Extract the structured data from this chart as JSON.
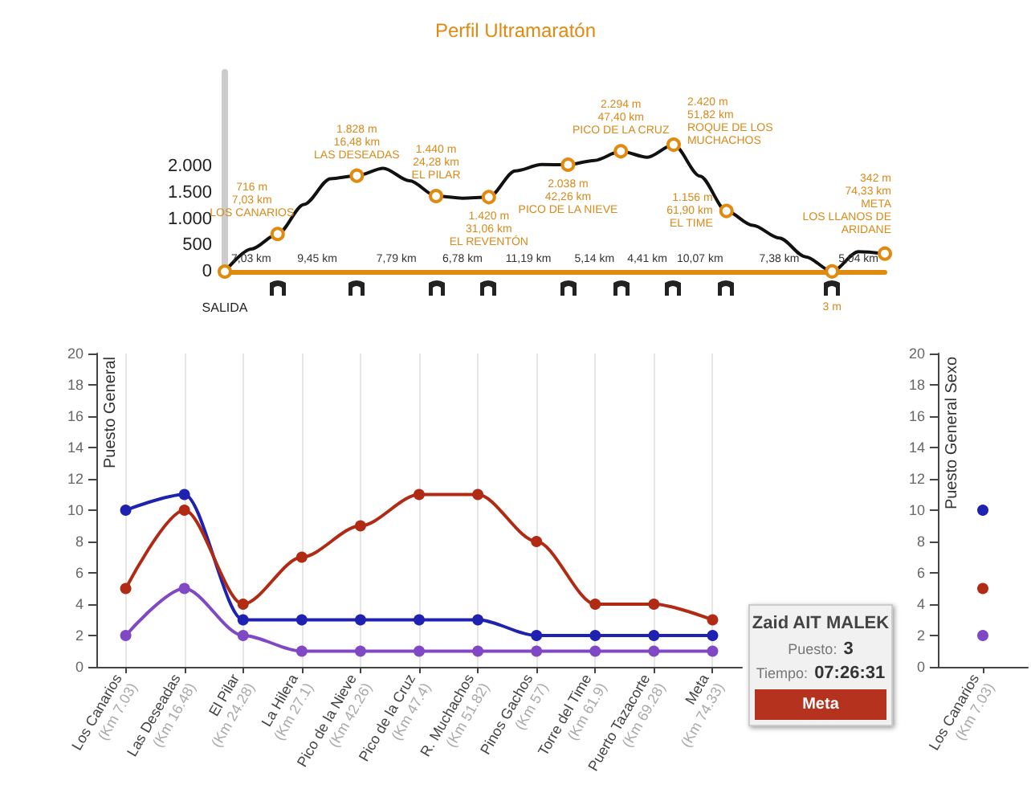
{
  "chart_data": [
    {
      "type": "line",
      "title": "Perfil Ultramaratón",
      "tick_labels": "y",
      "grid": false,
      "marker": "none",
      "categories": [
        null,
        null,
        null,
        null,
        null,
        null,
        null,
        null,
        null,
        null,
        null,
        null,
        null,
        null,
        null,
        null,
        null,
        null,
        null,
        null,
        null,
        null,
        null,
        null,
        null,
        null
      ],
      "series": [
        {
          "color": "#111111",
          "values": [
            0,
            430,
            716,
            1280,
            1770,
            1828,
            1970,
            1730,
            1440,
            1400,
            1420,
            1920,
            2040,
            2038,
            2120,
            2294,
            2180,
            2420,
            1820,
            1156,
            880,
            640,
            280,
            3,
            380,
            342
          ],
          "value_labels": [
            "SALIDA",
            null,
            "716 m\n7,03 km\nLOS CANARIOS",
            null,
            null,
            "1.828 m\n16,48 km\nLAS DESEADAS",
            null,
            null,
            "1.440 m\n24,28 km\nEL PILAR",
            null,
            "1.420 m\n31,06 km\nEL REVENTÓN",
            null,
            null,
            "2.038 m\n42,26 km\nPICO DE LA NIEVE",
            null,
            "2.294 m\n47,40 km\nPICO DE LA CRUZ",
            null,
            "2.420 m\n51,82 km\nROQUE DE LOS\nMUCHACHOS",
            null,
            "1.156 m\n61,90 km\nEL TIME",
            null,
            null,
            null,
            "3 m",
            null,
            "342 m\n74,33 km\nMETA\nLOS LLANOS DE\nARIDANE"
          ]
        }
      ],
      "ylim": [
        0,
        3800
      ],
      "yticks": [
        0,
        500,
        {
          "value": 1000,
          "label": "1.000"
        },
        {
          "value": 1500,
          "label": "1.500"
        },
        {
          "value": 2000,
          "label": "2.000"
        }
      ],
      "annotations": [
        "7,03 km",
        "9,45 km",
        "7,79 km",
        "6,78 km",
        "11,19 km",
        "5,14 km",
        "4,41 km",
        "10,07 km",
        "7,38 km",
        "5,04 km"
      ]
    },
    {
      "type": "line",
      "ylabel": "Puesto General",
      "grid": "x",
      "marker": "circle",
      "categories": [
        "Los Canarios\n(Km 7.03)",
        "Las Deseadas\n(Km 16.48)",
        "El Pilar\n(Km 24.28)",
        "La Hilera\n(Km 27.1)",
        "Pico de la Nieve\n(Km 42.26)",
        "Pico de la Cruz\n(Km 47.4)",
        "R. Muchachos\n(Km 51.82)",
        "Pinos Gachos\n(Km 57)",
        "Torre del Time\n(Km 61.9)",
        "Puerto Tazacorte\n(Km 69.28)",
        "Meta\n(Km 74.33)"
      ],
      "series": [
        {
          "color": "#1f22b0",
          "values": [
            10,
            11,
            3,
            3,
            3,
            3,
            3,
            2,
            2,
            2,
            2
          ]
        },
        {
          "color": "#b02a14",
          "values": [
            5,
            10,
            4,
            7,
            9,
            11,
            11,
            8,
            4,
            4,
            3
          ]
        },
        {
          "color": "#8048c4",
          "values": [
            2,
            5,
            2,
            1,
            1,
            1,
            1,
            1,
            1,
            1,
            1
          ]
        }
      ],
      "ylim": [
        0,
        20
      ],
      "yticks": [
        0,
        2,
        4,
        6,
        8,
        10,
        12,
        14,
        16,
        18,
        20
      ],
      "annotations": [
        "Zaid AIT MALEK",
        "Puesto:",
        "3",
        "Tiempo:",
        "07:26:31",
        "Meta"
      ]
    },
    {
      "type": "line",
      "ylabel": "Puesto General Sexo",
      "grid": false,
      "marker": "circle",
      "categories": [
        "Los Canarios\n(Km 7.03)"
      ],
      "series": [
        {
          "color": "#1f22b0",
          "values": [
            10
          ]
        },
        {
          "color": "#b02a14",
          "values": [
            5
          ]
        },
        {
          "color": "#8048c4",
          "values": [
            2
          ]
        }
      ],
      "ylim": [
        0,
        20
      ],
      "yticks": [
        0,
        2,
        4,
        6,
        8,
        10,
        12,
        14,
        16,
        18,
        20
      ]
    }
  ]
}
